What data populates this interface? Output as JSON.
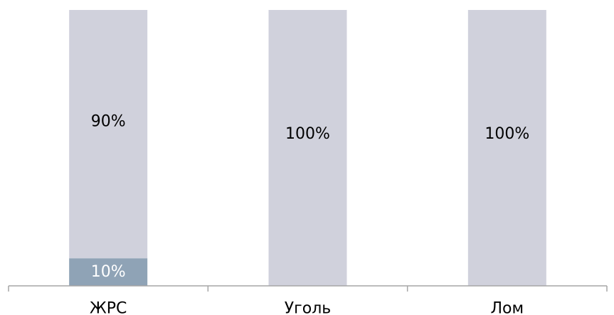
{
  "chart_data": {
    "type": "bar",
    "stacked": true,
    "categories": [
      "ЖРС",
      "Уголь",
      "Лом"
    ],
    "series": [
      {
        "values": [
          10,
          0,
          0
        ],
        "labels": [
          "10%",
          "",
          ""
        ],
        "color": "#8fa3b6",
        "label_color": "#ffffff"
      },
      {
        "values": [
          90,
          100,
          100
        ],
        "labels": [
          "90%",
          "100%",
          "100%"
        ],
        "color": "#d0d1dc",
        "label_color": "#000000"
      }
    ],
    "ylim": [
      0,
      100
    ],
    "grid": false,
    "legend": "none"
  }
}
